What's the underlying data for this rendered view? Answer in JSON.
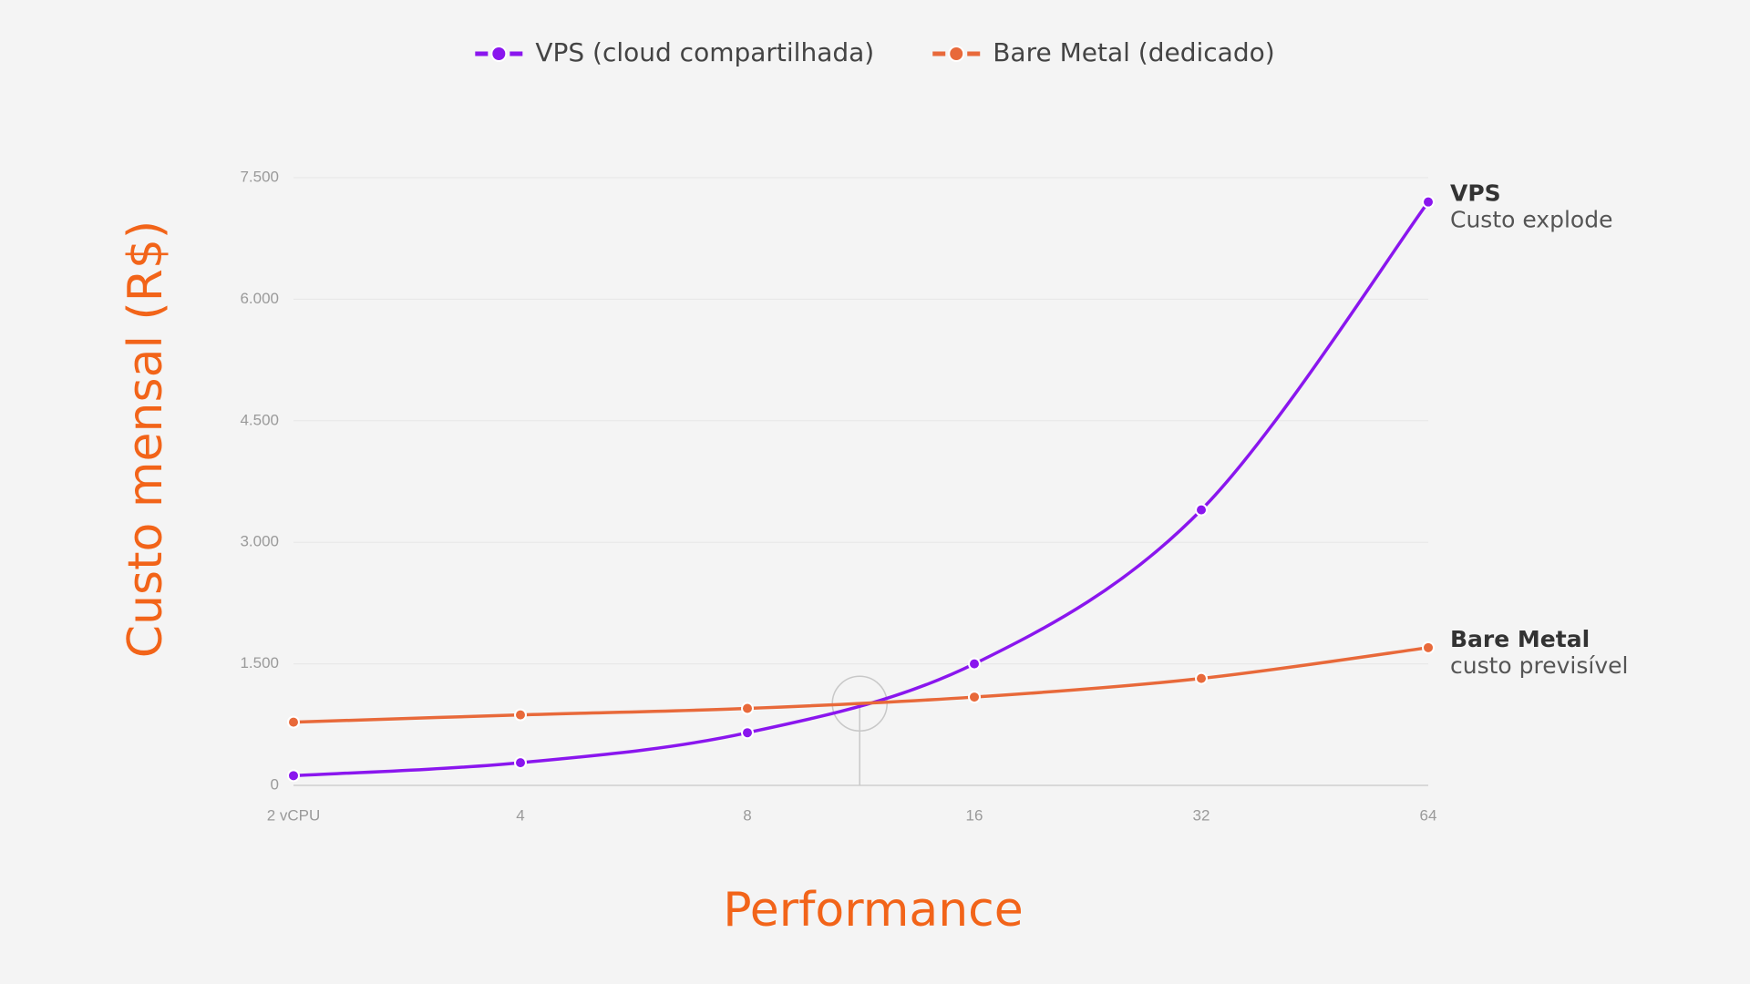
{
  "chart_data": {
    "type": "line",
    "categories": [
      "2 vCPU",
      "4",
      "8",
      "16",
      "32",
      "64"
    ],
    "series": [
      {
        "name": "VPS (cloud compartilhada)",
        "color": "#8a16ee",
        "values": [
          120,
          280,
          650,
          1500,
          3400,
          7200
        ]
      },
      {
        "name": "Bare Metal (dedicado)",
        "color": "#e8693a",
        "values": [
          780,
          870,
          950,
          1090,
          1320,
          1700
        ]
      }
    ],
    "ylim": [
      0,
      7500
    ],
    "yticks": [
      0,
      {
        "value": 1500,
        "label": "1.500"
      },
      {
        "value": 3000,
        "label": "3.000"
      },
      {
        "value": 4500,
        "label": "4.500"
      },
      {
        "value": 6000,
        "label": "6.000"
      },
      {
        "value": 7500,
        "label": "7.500"
      }
    ],
    "grid": true,
    "xlabel": "Performance",
    "ylabel": "Custo mensal (R$)",
    "legend": "top",
    "annotations": [
      {
        "title": "VPS",
        "text": "Custo explode"
      },
      {
        "title": "Bare Metal",
        "text": "custo previsível"
      }
    ]
  }
}
